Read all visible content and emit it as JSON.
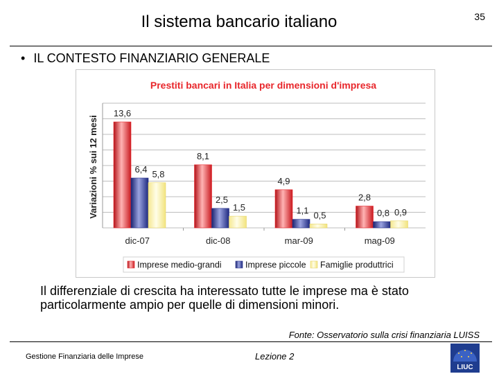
{
  "header": {
    "title": "Il sistema bancario italiano",
    "slide_number": "35"
  },
  "bullet": {
    "text": "IL CONTESTO FINANZIARIO GENERALE"
  },
  "body_text": "Il differenziale di crescita ha interessato tutte le imprese ma è stato particolarmente ampio per quelle di dimensioni minori.",
  "source": "Fonte: Osservatorio sulla crisi finanziaria LUISS",
  "footer": {
    "left": "Gestione Finanziaria delle Imprese",
    "middle": "Lezione 2",
    "logo_text": "LIUC"
  },
  "colors": {
    "series1": "#e8262b",
    "series2": "#27318b",
    "series3": "#fdf3a7",
    "title": "#e8262b"
  },
  "chart_data": {
    "type": "bar",
    "title": "Prestiti bancari in Italia per dimensioni d'impresa",
    "ylabel": "Variazioni % sui 12 mesi",
    "xlabel": "",
    "categories": [
      "dic-07",
      "dic-08",
      "mar-09",
      "mag-09"
    ],
    "series": [
      {
        "name": "Imprese medio-grandi",
        "values": [
          13.6,
          8.1,
          4.9,
          2.8
        ],
        "labels": [
          "13,6",
          "8,1",
          "4,9",
          "2,8"
        ]
      },
      {
        "name": "Imprese piccole",
        "values": [
          6.4,
          2.5,
          1.1,
          0.8
        ],
        "labels": [
          "6,4",
          "2,5",
          "1,1",
          "0,8"
        ]
      },
      {
        "name": "Famiglie produttrici",
        "values": [
          5.8,
          1.5,
          0.5,
          0.9
        ],
        "labels": [
          "5,8",
          "1,5",
          "0,5",
          "0,9"
        ]
      }
    ],
    "ylim": [
      0,
      16
    ],
    "grid": true,
    "legend": "bottom"
  }
}
